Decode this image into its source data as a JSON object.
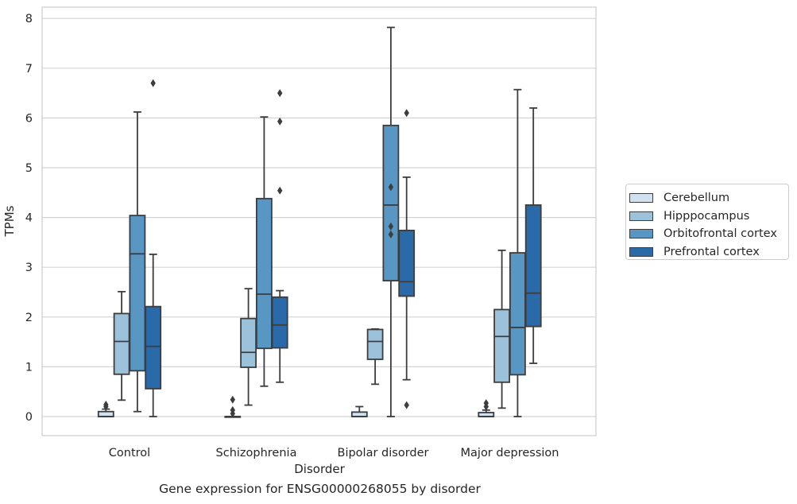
{
  "caption": "Gene expression for ENSG00000268055 by disorder",
  "chart_data": {
    "type": "box",
    "xlabel": "Disorder",
    "ylabel": "TPMs",
    "ylim": [
      -0.38,
      8.22
    ],
    "yticks": [
      0,
      1,
      2,
      3,
      4,
      5,
      6,
      7,
      8
    ],
    "grid": "horizontal",
    "legend_position": "right",
    "categories": [
      "Control",
      "Schizophrenia",
      "Bipolar disorder",
      "Major depression"
    ],
    "series": [
      {
        "name": "Cerebellum",
        "color": "#d1e1f0",
        "boxes": [
          {
            "whislo": 0.0,
            "q1": 0.0,
            "med": 0.0,
            "q3": 0.1,
            "whishi": 0.15,
            "fliers": [
              0.2,
              0.24
            ]
          },
          {
            "whislo": 0.0,
            "q1": 0.0,
            "med": 0.0,
            "q3": 0.0,
            "whishi": 0.0,
            "fliers": [
              0.06,
              0.13,
              0.34
            ]
          },
          {
            "whislo": 0.0,
            "q1": 0.0,
            "med": 0.0,
            "q3": 0.09,
            "whishi": 0.2,
            "fliers": []
          },
          {
            "whislo": 0.0,
            "q1": 0.0,
            "med": 0.0,
            "q3": 0.08,
            "whishi": 0.13,
            "fliers": [
              0.2,
              0.27
            ]
          }
        ]
      },
      {
        "name": "Hipppocampus",
        "color": "#9bc1db",
        "boxes": [
          {
            "whislo": 0.33,
            "q1": 0.85,
            "med": 1.51,
            "q3": 2.07,
            "whishi": 2.51,
            "fliers": []
          },
          {
            "whislo": 0.23,
            "q1": 0.99,
            "med": 1.29,
            "q3": 1.97,
            "whishi": 2.57,
            "fliers": []
          },
          {
            "whislo": 0.65,
            "q1": 1.15,
            "med": 1.51,
            "q3": 1.75,
            "whishi": 1.76,
            "fliers": []
          },
          {
            "whislo": 0.17,
            "q1": 0.69,
            "med": 1.61,
            "q3": 2.15,
            "whishi": 3.34,
            "fliers": []
          }
        ]
      },
      {
        "name": "Orbitofrontal cortex",
        "color": "#5896c4",
        "boxes": [
          {
            "whislo": 0.1,
            "q1": 0.92,
            "med": 3.27,
            "q3": 4.04,
            "whishi": 6.12,
            "fliers": []
          },
          {
            "whislo": 0.61,
            "q1": 1.37,
            "med": 2.46,
            "q3": 4.38,
            "whishi": 6.02,
            "fliers": []
          },
          {
            "whislo": 0.0,
            "q1": 2.73,
            "med": 4.25,
            "q3": 5.85,
            "whishi": 7.82,
            "fliers": [
              3.66,
              3.82,
              4.61
            ]
          },
          {
            "whislo": 0.0,
            "q1": 0.84,
            "med": 1.79,
            "q3": 3.29,
            "whishi": 6.57,
            "fliers": []
          }
        ]
      },
      {
        "name": "Prefrontal cortex",
        "color": "#2b6aa8",
        "boxes": [
          {
            "whislo": 0.0,
            "q1": 0.56,
            "med": 1.41,
            "q3": 2.21,
            "whishi": 3.26,
            "fliers": [
              6.7
            ]
          },
          {
            "whislo": 0.69,
            "q1": 1.38,
            "med": 1.84,
            "q3": 2.4,
            "whishi": 2.53,
            "fliers": [
              4.54,
              5.93,
              6.5
            ]
          },
          {
            "whislo": 0.74,
            "q1": 2.42,
            "med": 2.71,
            "q3": 3.74,
            "whishi": 4.81,
            "fliers": [
              0.23,
              6.1
            ]
          },
          {
            "whislo": 1.07,
            "q1": 1.81,
            "med": 2.48,
            "q3": 4.25,
            "whishi": 6.2,
            "fliers": []
          }
        ]
      }
    ]
  }
}
